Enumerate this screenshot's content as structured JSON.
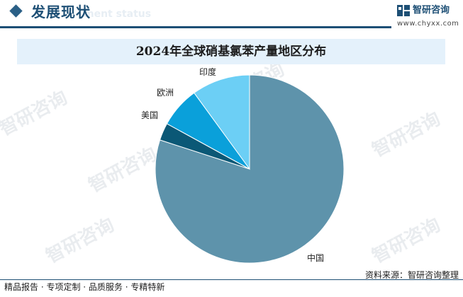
{
  "header": {
    "title": "发展现状",
    "subtitle_en": "ment status",
    "brand_name": "智研咨询",
    "brand_url": "www.chyxx.com",
    "accent_color": "#1d4f75"
  },
  "watermark_text": "智研咨询",
  "chart_data": {
    "type": "pie",
    "title": "2024年全球硝基氯苯产量地区分布",
    "slices": [
      {
        "label": "中国",
        "value": 0.8,
        "color": "#5e93ab"
      },
      {
        "label": "美国",
        "value": 0.03,
        "color": "#0b5876"
      },
      {
        "label": "欧洲",
        "value": 0.07,
        "color": "#0aa0da"
      },
      {
        "label": "印度",
        "value": 0.1,
        "color": "#6ccff5"
      }
    ],
    "start_angle": "12 o'clock",
    "direction": "clockwise"
  },
  "footer": {
    "left_text": "精品报告 · 专项定制 · 品质服务 · 专精特新",
    "source": "资料来源：智研咨询整理"
  }
}
